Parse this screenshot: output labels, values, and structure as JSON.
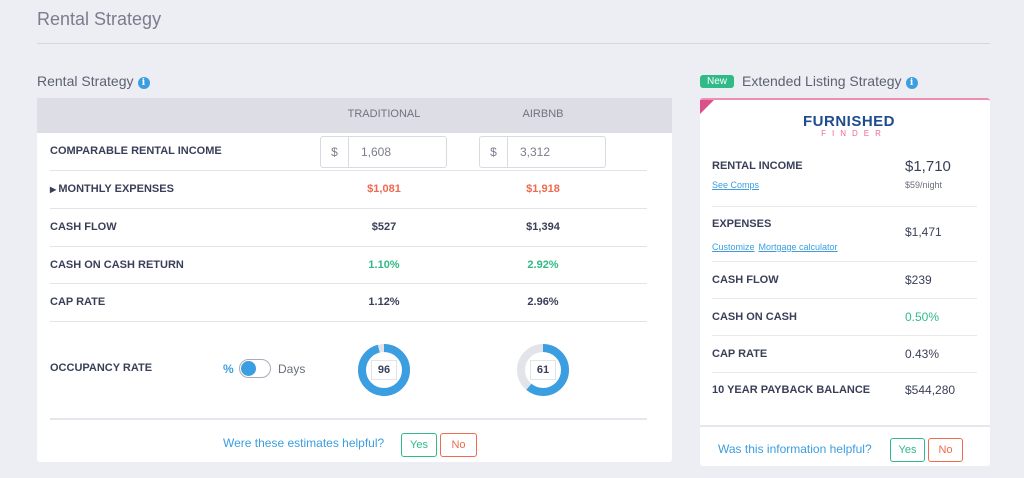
{
  "page_title": "Rental Strategy",
  "left": {
    "title": "Rental Strategy",
    "columns": [
      "TRADITIONAL",
      "AIRBNB"
    ],
    "rows": {
      "income": {
        "label": "COMPARABLE RENTAL INCOME",
        "currency": "$",
        "traditional": "1,608",
        "airbnb": "3,312"
      },
      "expenses": {
        "label": "MONTHLY EXPENSES",
        "traditional": "$1,081",
        "airbnb": "$1,918"
      },
      "cash_flow": {
        "label": "CASH FLOW",
        "traditional": "$527",
        "airbnb": "$1,394"
      },
      "coc": {
        "label": "CASH ON CASH RETURN",
        "traditional": "1.10%",
        "airbnb": "2.92%"
      },
      "cap": {
        "label": "CAP RATE",
        "traditional": "1.12%",
        "airbnb": "2.96%"
      },
      "occupancy": {
        "label": "OCCUPANCY RATE",
        "toggle_left": "%",
        "toggle_right": "Days",
        "traditional": "96",
        "airbnb": "61"
      }
    },
    "feedback": {
      "question": "Were these estimates helpful?",
      "yes": "Yes",
      "no": "No"
    }
  },
  "right": {
    "badge": "New",
    "title": "Extended Listing Strategy",
    "logo": {
      "line1": "FURNISHED",
      "line2": "FINDER"
    },
    "rental_income": {
      "label": "RENTAL INCOME",
      "link": "See Comps",
      "value": "$1,710",
      "sub": "$59/night"
    },
    "expenses": {
      "label": "EXPENSES",
      "links": [
        "Customize",
        "Mortgage calculator"
      ],
      "value": "$1,471"
    },
    "cash_flow": {
      "label": "CASH FLOW",
      "value": "$239"
    },
    "coc": {
      "label": "CASH ON CASH",
      "value": "0.50%"
    },
    "cap": {
      "label": "CAP RATE",
      "value": "0.43%"
    },
    "payback": {
      "label": "10 YEAR PAYBACK BALANCE",
      "value": "$544,280"
    },
    "feedback": {
      "question": "Was this information helpful?",
      "yes": "Yes",
      "no": "No"
    }
  },
  "colors": {
    "accent": "#3b9ee0",
    "positive": "#2fba87",
    "negative": "#ef6a4f",
    "brand_pink": "#ef8fb0",
    "brand_navy": "#1f4c8c"
  }
}
